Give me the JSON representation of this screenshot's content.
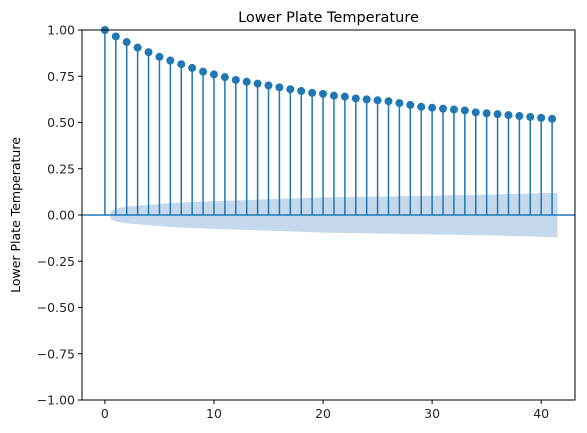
{
  "chart_data": {
    "type": "stem",
    "title": "Lower Plate Temperature",
    "xlabel": "",
    "ylabel": "Lower Plate Temperature",
    "xlim": [
      -2.1,
      43.1
    ],
    "ylim": [
      -1.0,
      1.0
    ],
    "xticks": [
      0,
      10,
      20,
      30,
      40
    ],
    "yticks": [
      -1.0,
      -0.75,
      -0.5,
      -0.25,
      0.0,
      0.25,
      0.5,
      0.75,
      1.0
    ],
    "xtick_labels": [
      "0",
      "10",
      "20",
      "30",
      "40"
    ],
    "ytick_labels": [
      "−1.00",
      "−0.75",
      "−0.50",
      "−0.25",
      "0.00",
      "0.25",
      "0.50",
      "0.75",
      "1.00"
    ],
    "grid": false,
    "lags": [
      0,
      1,
      2,
      3,
      4,
      5,
      6,
      7,
      8,
      9,
      10,
      11,
      12,
      13,
      14,
      15,
      16,
      17,
      18,
      19,
      20,
      21,
      22,
      23,
      24,
      25,
      26,
      27,
      28,
      29,
      30,
      31,
      32,
      33,
      34,
      35,
      36,
      37,
      38,
      39,
      40,
      41
    ],
    "acf": [
      1.0,
      0.965,
      0.935,
      0.905,
      0.88,
      0.855,
      0.835,
      0.815,
      0.795,
      0.775,
      0.76,
      0.745,
      0.73,
      0.72,
      0.71,
      0.7,
      0.69,
      0.68,
      0.67,
      0.66,
      0.655,
      0.645,
      0.64,
      0.63,
      0.625,
      0.62,
      0.615,
      0.605,
      0.595,
      0.585,
      0.58,
      0.575,
      0.57,
      0.565,
      0.555,
      0.55,
      0.545,
      0.54,
      0.535,
      0.53,
      0.525,
      0.52
    ],
    "confidence_band": {
      "lags": [
        0.5,
        1,
        2,
        4,
        6,
        8,
        10,
        15,
        20,
        25,
        30,
        35,
        41.5
      ],
      "upper": [
        0.02,
        0.035,
        0.045,
        0.055,
        0.065,
        0.07,
        0.075,
        0.085,
        0.095,
        0.1,
        0.105,
        0.11,
        0.12
      ]
    },
    "colors": {
      "stem": "#1f77b4",
      "marker": "#1f77b4",
      "band": "#c6d9ec",
      "zero_line": "#1f77b4",
      "axes": "#000000"
    }
  }
}
